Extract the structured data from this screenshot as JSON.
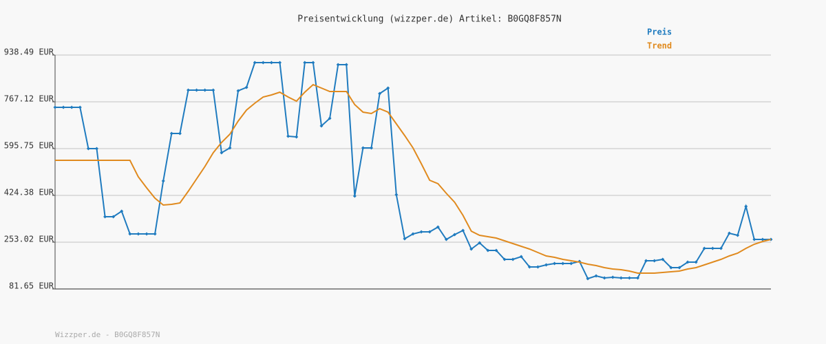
{
  "chart_data": {
    "type": "line",
    "title": "Preisentwicklung (wizzper.de) Artikel: B0GQ8F857N",
    "footer": "Wizzper.de - B0GQ8F857N",
    "ylim": [
      81.65,
      938.49
    ],
    "yticks": [
      {
        "value": 81.65,
        "label": "81.65 EUR"
      },
      {
        "value": 253.02,
        "label": "253.02 EUR"
      },
      {
        "value": 424.38,
        "label": "424.38 EUR"
      },
      {
        "value": 595.75,
        "label": "595.75 EUR"
      },
      {
        "value": 767.12,
        "label": "767.12 EUR"
      },
      {
        "value": 938.49,
        "label": "938.49 EUR"
      }
    ],
    "grid": true,
    "legend": "top-right",
    "series": [
      {
        "name": "Preis",
        "color": "#1f7bbf",
        "markers": true,
        "values": [
          746.9,
          746.9,
          746.9,
          746.9,
          595.7,
          595.7,
          346.3,
          346.3,
          366.4,
          283.3,
          283.3,
          283.3,
          283.3,
          477.3,
          651.2,
          651.2,
          809.9,
          809.9,
          809.9,
          809.9,
          580.6,
          598.3,
          807.4,
          820.0,
          910.7,
          910.7,
          910.7,
          910.7,
          641.1,
          638.6,
          910.7,
          910.7,
          678.9,
          706.6,
          903.1,
          903.1,
          421.9,
          598.3,
          598.3,
          797.3,
          817.5,
          426.9,
          265.6,
          283.3,
          290.8,
          290.8,
          308.5,
          263.1,
          280.7,
          295.9,
          227.8,
          250.5,
          222.8,
          222.8,
          190.0,
          190.0,
          200.1,
          162.3,
          162.3,
          169.9,
          174.9,
          174.9,
          174.9,
          182.5,
          119.4,
          129.5,
          122.0,
          124.5,
          122.0,
          122.0,
          122.0,
          185.0,
          185.0,
          190.0,
          159.8,
          159.8,
          179.9,
          179.9,
          230.3,
          230.3,
          230.3,
          285.8,
          278.2,
          384.1,
          263.1,
          263.1,
          263.1
        ]
      },
      {
        "name": "Trend",
        "color": "#e08a1e",
        "markers": false,
        "values": [
          552.9,
          552.9,
          552.9,
          552.9,
          552.9,
          552.9,
          552.9,
          552.9,
          552.9,
          552.9,
          492.4,
          452.1,
          414.3,
          389.1,
          391.6,
          396.7,
          439.5,
          484.9,
          530.2,
          580.6,
          618.4,
          648.6,
          696.5,
          736.8,
          762.0,
          784.7,
          792.3,
          802.4,
          784.7,
          769.6,
          802.4,
          830.1,
          817.5,
          804.9,
          804.9,
          804.9,
          757.0,
          729.3,
          724.3,
          741.9,
          729.3,
          686.5,
          643.6,
          598.3,
          540.3,
          479.8,
          467.2,
          432.0,
          399.2,
          351.3,
          293.3,
          278.2,
          273.2,
          268.1,
          258.1,
          248.0,
          237.9,
          227.8,
          215.2,
          202.6,
          197.6,
          190.0,
          185.0,
          179.9,
          172.4,
          167.3,
          159.8,
          154.7,
          152.2,
          147.2,
          139.6,
          139.6,
          139.6,
          142.1,
          144.7,
          147.2,
          154.7,
          159.8,
          169.9,
          179.9,
          190.0,
          202.6,
          212.7,
          230.3,
          245.4,
          255.5,
          263.1
        ]
      }
    ]
  }
}
